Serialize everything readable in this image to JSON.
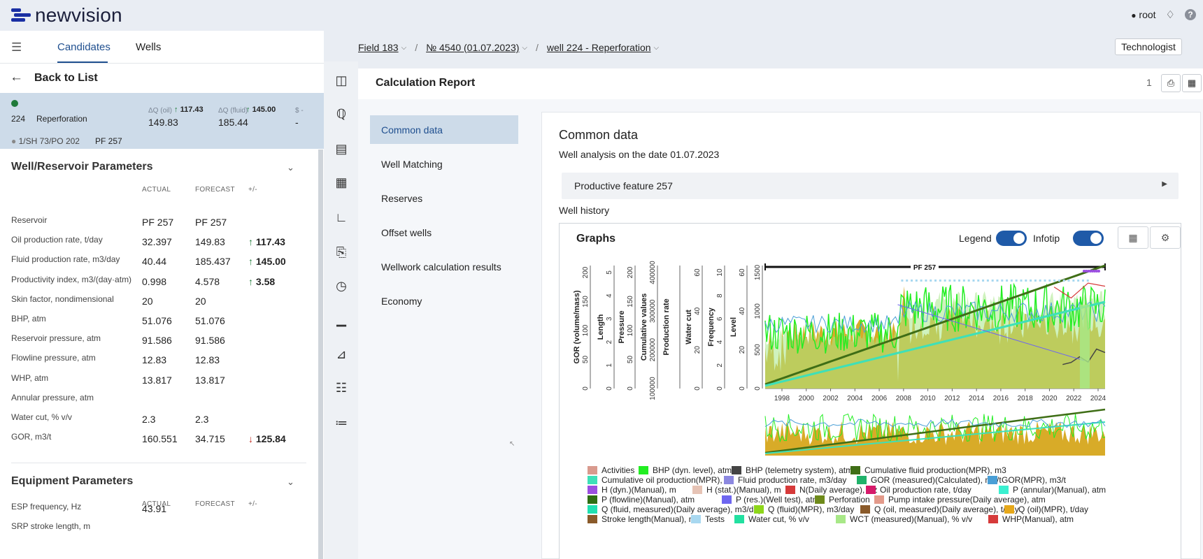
{
  "app": {
    "logo_text": "newvision",
    "user": "root",
    "help": "?"
  },
  "left": {
    "tabs": [
      "Candidates",
      "Wells"
    ],
    "back": "Back to List",
    "candidate": {
      "well": "224",
      "type": "Reperforation",
      "dq_oil_label": "ΔQ (oil)",
      "dq_oil_delta": "117.43",
      "dq_oil_value": "149.83",
      "dq_fluid_label": "ΔQ (fluid)",
      "dq_fluid_delta": "145.00",
      "dq_fluid_value": "185.44",
      "money_label": "$ -",
      "money_value": "-",
      "location": "1/SH 73/PO 202",
      "pf": "PF 257"
    },
    "well_params": {
      "title": "Well/Reservoir Parameters",
      "cols": [
        "ACTUAL",
        "FORECAST",
        "+/-"
      ],
      "rows": [
        {
          "name": "Reservoir",
          "actual": "PF 257",
          "forecast": "PF 257",
          "delta": "",
          "dir": ""
        },
        {
          "name": "Oil production rate, t/day",
          "actual": "32.397",
          "forecast": "149.83",
          "delta": "117.43",
          "dir": "up"
        },
        {
          "name": "Fluid production rate, m3/day",
          "actual": "40.44",
          "forecast": "185.437",
          "delta": "145.00",
          "dir": "up"
        },
        {
          "name": "Productivity index, m3/(day·atm)",
          "actual": "0.998",
          "forecast": "4.578",
          "delta": "3.58",
          "dir": "up"
        },
        {
          "name": "Skin factor, nondimensional",
          "actual": "20",
          "forecast": "20",
          "delta": "",
          "dir": ""
        },
        {
          "name": "BHP, atm",
          "actual": "51.076",
          "forecast": "51.076",
          "delta": "",
          "dir": ""
        },
        {
          "name": "Reservoir pressure, atm",
          "actual": "91.586",
          "forecast": "91.586",
          "delta": "",
          "dir": ""
        },
        {
          "name": "Flowline pressure, atm",
          "actual": "12.83",
          "forecast": "12.83",
          "delta": "",
          "dir": ""
        },
        {
          "name": "WHP, atm",
          "actual": "13.817",
          "forecast": "13.817",
          "delta": "",
          "dir": ""
        },
        {
          "name": "Annular pressure, atm",
          "actual": "",
          "forecast": "",
          "delta": "",
          "dir": ""
        },
        {
          "name": "Water cut, % v/v",
          "actual": "2.3",
          "forecast": "2.3",
          "delta": "",
          "dir": ""
        },
        {
          "name": "GOR, m3/t",
          "actual": "160.551",
          "forecast": "34.715",
          "delta": "125.84",
          "dir": "down"
        }
      ]
    },
    "equip_params": {
      "title": "Equipment Parameters",
      "cols": [
        "ACTUAL",
        "FORECAST",
        "+/-"
      ],
      "rows": [
        {
          "name": "ESP frequency, Hz",
          "actual": "43.91",
          "forecast": "",
          "delta": ""
        },
        {
          "name": "SRP stroke length, m",
          "actual": "",
          "forecast": "",
          "delta": ""
        }
      ]
    }
  },
  "breadcrumb": [
    "Field 183",
    "№ 4540 (01.07.2023)",
    "well 224 - Reperforation"
  ],
  "role_button": "Technologist",
  "report": {
    "title": "Calculation Report",
    "page": "1",
    "nav": [
      "Common data",
      "Well Matching",
      "Reserves",
      "Offset wells",
      "Wellwork calculation results",
      "Economy"
    ],
    "card_title": "Common data",
    "card_sub": "Well analysis on the date 01.07.2023",
    "productive_feature": "Productive feature 257",
    "well_history": "Well history",
    "graphs_title": "Graphs",
    "legend_toggle": "Legend",
    "infotip_toggle": "Infotip"
  },
  "chart_data": {
    "type": "area",
    "x_ticks": [
      "1998",
      "2000",
      "2002",
      "2004",
      "2006",
      "2008",
      "2010",
      "2012",
      "2014",
      "2016",
      "2018",
      "2020",
      "2022",
      "2024"
    ],
    "band_label": "PF 257",
    "axes": [
      {
        "label": "GOR (volume/mass)",
        "ticks": [
          "0",
          "50",
          "100",
          "150",
          "200"
        ]
      },
      {
        "label": "Length",
        "ticks": [
          "0",
          "1",
          "2",
          "3",
          "4",
          "5"
        ]
      },
      {
        "label": "Pressure",
        "ticks": [
          "0",
          "50",
          "100",
          "150",
          "200"
        ]
      },
      {
        "label": "Cumulative values",
        "ticks": [
          "100000",
          "200000",
          "300000",
          "400000"
        ]
      },
      {
        "label": "Production rate",
        "ticks": []
      },
      {
        "label": "Water cut",
        "ticks": [
          "0",
          "20",
          "40",
          "60"
        ]
      },
      {
        "label": "Frequency",
        "ticks": [
          "0",
          "2",
          "4",
          "6",
          "8",
          "10"
        ]
      },
      {
        "label": "Level",
        "ticks": [
          "0",
          "20",
          "40",
          "60"
        ]
      },
      {
        "label": "",
        "ticks": [
          "0",
          "500",
          "1000",
          "1500"
        ]
      }
    ],
    "legend": [
      {
        "name": "Activities",
        "color": "#d99a8e"
      },
      {
        "name": "BHP (dyn. level), atm",
        "color": "#22ee22"
      },
      {
        "name": "BHP (telemetry system), atm",
        "color": "#444444"
      },
      {
        "name": "Cumulative fluid production(MPR), m3",
        "color": "#3f6e16"
      },
      {
        "name": "Cumulative oil production(MPR), t",
        "color": "#3ee0b8"
      },
      {
        "name": "Fluid production rate, m3/day",
        "color": "#8c88e0"
      },
      {
        "name": "GOR (measured)(Calculated), m3/t",
        "color": "#20b26a"
      },
      {
        "name": "GOR(MPR), m3/t",
        "color": "#4a9fd6"
      },
      {
        "name": "H (dyn.)(Manual), m",
        "color": "#9b4fe0"
      },
      {
        "name": "H (stat.)(Manual), m",
        "color": "#e6c3b5"
      },
      {
        "name": "N(Daily average), Hz",
        "color": "#d63a3a"
      },
      {
        "name": "Oil production rate, t/day",
        "color": "#d61a6a"
      },
      {
        "name": "P (annular)(Manual), atm",
        "color": "#3af0d0"
      },
      {
        "name": "P (flowline)(Manual), atm",
        "color": "#2f6e12"
      },
      {
        "name": "P (res.)(Well test), atm",
        "color": "#6e66f0"
      },
      {
        "name": "Perforation",
        "color": "#6e8a1a"
      },
      {
        "name": "Pump intake pressure(Daily average), atm",
        "color": "#e39a8a"
      },
      {
        "name": "Q (fluid, measured)(Daily average), m3/day",
        "color": "#20e0b0"
      },
      {
        "name": "Q (fluid)(MPR), m3/day",
        "color": "#8ed61a"
      },
      {
        "name": "Q (oil, measured)(Daily average), t/day",
        "color": "#8a5a2a"
      },
      {
        "name": "Q (oil)(MPR), t/day",
        "color": "#e6a81a"
      },
      {
        "name": "Stroke length(Manual), m",
        "color": "#8a5a2a"
      },
      {
        "name": "Tests",
        "color": "#a8d8f0"
      },
      {
        "name": "Water cut, % v/v",
        "color": "#22e0a0"
      },
      {
        "name": "WCT (measured)(Manual), % v/v",
        "color": "#a8e888"
      },
      {
        "name": "WHP(Manual), atm",
        "color": "#d63a3a"
      }
    ]
  }
}
